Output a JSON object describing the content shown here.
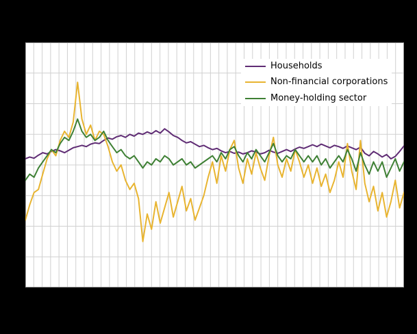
{
  "colors": {
    "background": "#000000",
    "plot_background": "#ffffff",
    "gridline": "#d0d0d0",
    "plot_border": "#9e9e9e",
    "households": "#5f2c74",
    "non_financial": "#e8b430",
    "money_holding": "#3e8034",
    "legend_text": "#000000"
  },
  "legend": {
    "items": [
      {
        "label": "Households"
      },
      {
        "label": "Non-financial corporations"
      },
      {
        "label": "Money-holding sector"
      }
    ]
  },
  "chart_data": {
    "type": "line",
    "title": "",
    "xlabel": "",
    "ylabel": "",
    "ylim": [
      -15,
      25
    ],
    "y_grid_step": 5,
    "x_gridline_intervals": 45,
    "grid": true,
    "legend_position": "upper-right-inside",
    "x": "monthly observations (axis labels not legible in screenshot)",
    "series": [
      {
        "name": "Households",
        "color": "#5f2c74",
        "values": [
          6.0,
          6.3,
          6.1,
          6.6,
          7.0,
          6.8,
          7.2,
          7.5,
          7.3,
          7.0,
          7.4,
          7.8,
          8.0,
          8.2,
          8.0,
          8.4,
          8.6,
          8.5,
          9.0,
          9.4,
          9.2,
          9.6,
          9.8,
          9.5,
          10.0,
          9.7,
          10.2,
          10.0,
          10.4,
          10.1,
          10.6,
          10.2,
          10.9,
          10.4,
          9.8,
          9.5,
          9.0,
          8.6,
          8.8,
          8.4,
          8.0,
          8.2,
          7.8,
          7.5,
          7.7,
          7.3,
          7.0,
          7.2,
          6.9,
          7.1,
          6.8,
          7.0,
          7.3,
          7.1,
          6.8,
          7.0,
          7.4,
          7.1,
          6.9,
          7.2,
          7.5,
          7.2,
          7.6,
          7.9,
          7.7,
          8.0,
          8.3,
          8.0,
          8.4,
          8.1,
          7.8,
          8.2,
          8.0,
          7.7,
          8.1,
          7.8,
          7.5,
          7.9,
          6.9,
          6.5,
          7.2,
          6.8,
          6.3,
          6.7,
          6.0,
          6.4,
          7.2,
          8.1
        ]
      },
      {
        "name": "Non-financial corporations",
        "color": "#e8b430",
        "values": [
          -4.0,
          -1.5,
          0.5,
          1.0,
          3.5,
          6.0,
          7.5,
          6.5,
          9.0,
          10.5,
          9.5,
          12.0,
          18.5,
          12.5,
          10.0,
          11.5,
          9.0,
          10.5,
          10.0,
          8.0,
          5.5,
          4.0,
          5.0,
          2.5,
          1.0,
          2.0,
          -0.5,
          -7.5,
          -3.0,
          -5.5,
          -1.0,
          -4.5,
          -2.0,
          0.5,
          -3.5,
          -1.0,
          1.5,
          -2.5,
          -0.5,
          -4.0,
          -2.0,
          0.0,
          3.0,
          5.5,
          2.0,
          6.5,
          4.0,
          7.5,
          9.0,
          4.5,
          2.0,
          6.0,
          3.5,
          7.0,
          4.5,
          2.5,
          6.5,
          9.5,
          5.0,
          3.0,
          6.0,
          4.0,
          7.5,
          5.5,
          3.0,
          5.0,
          2.0,
          4.5,
          1.5,
          3.5,
          0.5,
          2.5,
          5.5,
          3.0,
          8.5,
          4.0,
          1.0,
          9.0,
          2.0,
          -1.0,
          1.5,
          -2.5,
          0.5,
          -3.5,
          -1.0,
          2.5,
          -2.0,
          0.5
        ]
      },
      {
        "name": "Money-holding sector",
        "color": "#3e8034",
        "values": [
          2.5,
          3.5,
          3.0,
          4.5,
          5.5,
          6.5,
          7.5,
          7.0,
          8.5,
          9.5,
          9.0,
          10.5,
          12.5,
          10.5,
          9.5,
          10.0,
          9.0,
          9.5,
          10.5,
          9.0,
          8.0,
          7.0,
          7.5,
          6.5,
          6.0,
          6.5,
          5.5,
          4.5,
          5.5,
          5.0,
          6.0,
          5.5,
          6.5,
          6.0,
          5.0,
          5.5,
          6.0,
          5.0,
          5.5,
          4.5,
          5.0,
          5.5,
          6.0,
          6.5,
          5.5,
          7.0,
          6.0,
          7.5,
          8.0,
          6.5,
          5.5,
          7.0,
          6.0,
          7.5,
          6.5,
          5.5,
          7.0,
          8.5,
          6.5,
          5.5,
          6.5,
          6.0,
          7.5,
          6.5,
          5.5,
          6.5,
          5.5,
          6.5,
          5.0,
          6.0,
          4.5,
          5.5,
          6.5,
          5.5,
          7.5,
          6.0,
          4.0,
          7.0,
          5.0,
          3.5,
          5.5,
          4.0,
          5.5,
          3.0,
          4.5,
          6.0,
          4.0,
          5.5
        ]
      }
    ]
  }
}
